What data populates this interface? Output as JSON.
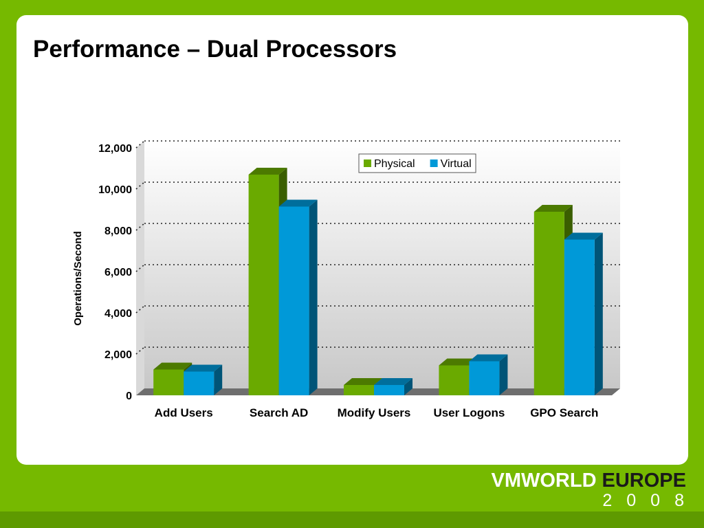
{
  "slide": {
    "title": "Performance – Dual Processors"
  },
  "brand": {
    "primary": "VMWORLD",
    "secondary": "EUROPE",
    "year": "2008"
  },
  "colors": {
    "background": "#76b900",
    "panel": "#ffffff",
    "physical": "#6aaa00",
    "virtual": "#0099d8"
  },
  "chart_data": {
    "type": "bar",
    "title": "",
    "xlabel": "",
    "ylabel": "Operations/Second",
    "categories": [
      "Add Users",
      "Search AD",
      "Modify Users",
      "User Logons",
      "GPO Search"
    ],
    "series": [
      {
        "name": "Physical",
        "values": [
          1250,
          10700,
          500,
          1450,
          8900
        ]
      },
      {
        "name": "Virtual",
        "values": [
          1150,
          9150,
          500,
          1650,
          7550
        ]
      }
    ],
    "ylim": [
      0,
      12000
    ],
    "yticks": [
      0,
      2000,
      4000,
      6000,
      8000,
      10000,
      12000
    ],
    "ytick_labels": [
      "0",
      "2,000",
      "4,000",
      "6,000",
      "8,000",
      "10,000",
      "12,000"
    ],
    "grid": true,
    "legend": "top-right",
    "style": "3d"
  }
}
